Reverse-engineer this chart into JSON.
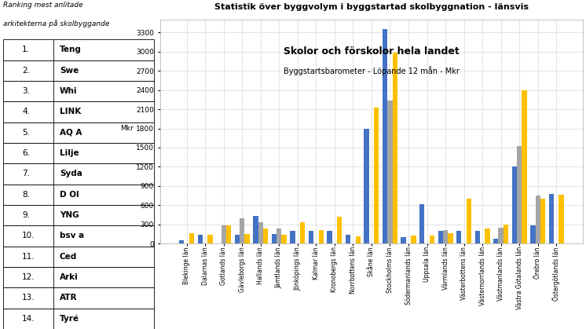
{
  "title": "Skolor och förskolor hela landet",
  "subtitle": "Byggstartsbarometer - Löpande 12 mån - Mkr",
  "main_title": "Statistik över byggvolym i byggstartad skolbyggnation - länsvis",
  "left_title_line1": "Ranking mest anlitade",
  "left_title_line2": "arkitekterna på skolbyggande",
  "ylabel": "Mkr",
  "categories": [
    "Blekinge län",
    "Dalarnas län",
    "Gotlands län",
    "Gävleborgs län",
    "Hallands län",
    "Jämtlands län",
    "Jönköpings län",
    "Kalmar län",
    "Kronobergs län",
    "Norrbottens län",
    "Skåne län",
    "Stockholms län",
    "Södermanlands län",
    "Uppsala län",
    "Värmlands län",
    "Västerbottens län",
    "Västernorrlands län",
    "Västmanlands län",
    "Västra Götalands län",
    "Örebro län",
    "Östergötlands län"
  ],
  "ranking": [
    "1.",
    "2.",
    "3.",
    "4.",
    "5.",
    "6.",
    "7.",
    "8.",
    "9.",
    "10.",
    "11.",
    "12.",
    "13.",
    "14."
  ],
  "ranking_names": [
    "Teng",
    "Swe",
    "Whi",
    "LINK",
    "AQ A",
    "Lilje",
    "Syda",
    "D Ol",
    "YNG",
    "bsv a",
    "Ced",
    "Arki",
    "ATR",
    "Tyré"
  ],
  "blue_values": [
    50,
    130,
    0,
    130,
    430,
    150,
    200,
    200,
    200,
    130,
    1800,
    3350,
    100,
    620,
    200,
    200,
    200,
    80,
    1200,
    280,
    780
  ],
  "gray_values": [
    0,
    0,
    280,
    390,
    330,
    230,
    0,
    0,
    0,
    0,
    0,
    2240,
    0,
    0,
    210,
    0,
    0,
    250,
    1520,
    750,
    0
  ],
  "orange_values": [
    160,
    130,
    280,
    150,
    230,
    140,
    330,
    210,
    420,
    110,
    2130,
    2980,
    120,
    120,
    160,
    700,
    230,
    290,
    2400,
    700,
    760
  ],
  "blue_color": "#4472C4",
  "gray_color": "#A5A5A5",
  "orange_color": "#FFC000",
  "background_color": "#FFFFFF",
  "grid_color": "#D9D9D9",
  "ylim_max": 3500,
  "yticks": [
    0,
    300,
    600,
    900,
    1200,
    1500,
    1800,
    2100,
    2400,
    2700,
    3000,
    3300
  ],
  "figsize": [
    7.46,
    4.19
  ],
  "dpi": 100
}
